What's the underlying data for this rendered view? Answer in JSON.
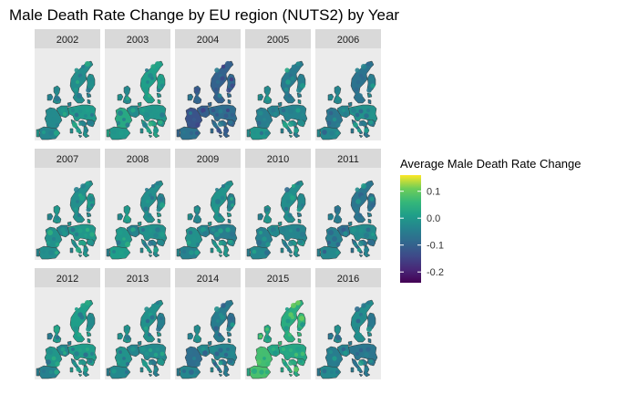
{
  "chart_data": {
    "type": "heatmap",
    "subtype": "faceted choropleth map",
    "title": "Male Death Rate Change by EU region (NUTS2) by Year",
    "facets": [
      "2002",
      "2003",
      "2004",
      "2005",
      "2006",
      "2007",
      "2008",
      "2009",
      "2010",
      "2011",
      "2012",
      "2013",
      "2014",
      "2015",
      "2016"
    ],
    "facet_layout": {
      "rows": 3,
      "cols": 5
    },
    "legend": {
      "title": "Average Male Death Rate Change",
      "placement": "right",
      "scale": "viridis",
      "range": [
        -0.24,
        0.16
      ],
      "ticks": [
        {
          "value": 0.1,
          "label": "0.1"
        },
        {
          "value": 0.0,
          "label": "0.0"
        },
        {
          "value": -0.1,
          "label": "-0.1"
        },
        {
          "value": -0.2,
          "label": "-0.2"
        }
      ]
    },
    "facet_summary": [
      {
        "year": "2002",
        "typical": -0.02
      },
      {
        "year": "2003",
        "typical": 0.0
      },
      {
        "year": "2004",
        "typical": -0.1
      },
      {
        "year": "2005",
        "typical": -0.03
      },
      {
        "year": "2006",
        "typical": -0.04
      },
      {
        "year": "2007",
        "typical": -0.01
      },
      {
        "year": "2008",
        "typical": -0.02
      },
      {
        "year": "2009",
        "typical": -0.02
      },
      {
        "year": "2010",
        "typical": -0.03
      },
      {
        "year": "2011",
        "typical": -0.05
      },
      {
        "year": "2012",
        "typical": -0.02
      },
      {
        "year": "2013",
        "typical": -0.03
      },
      {
        "year": "2014",
        "typical": -0.05
      },
      {
        "year": "2015",
        "typical": 0.05
      },
      {
        "year": "2016",
        "typical": -0.05
      }
    ],
    "panel_background": "#ebebeb",
    "strip_background": "#d9d9d9"
  }
}
